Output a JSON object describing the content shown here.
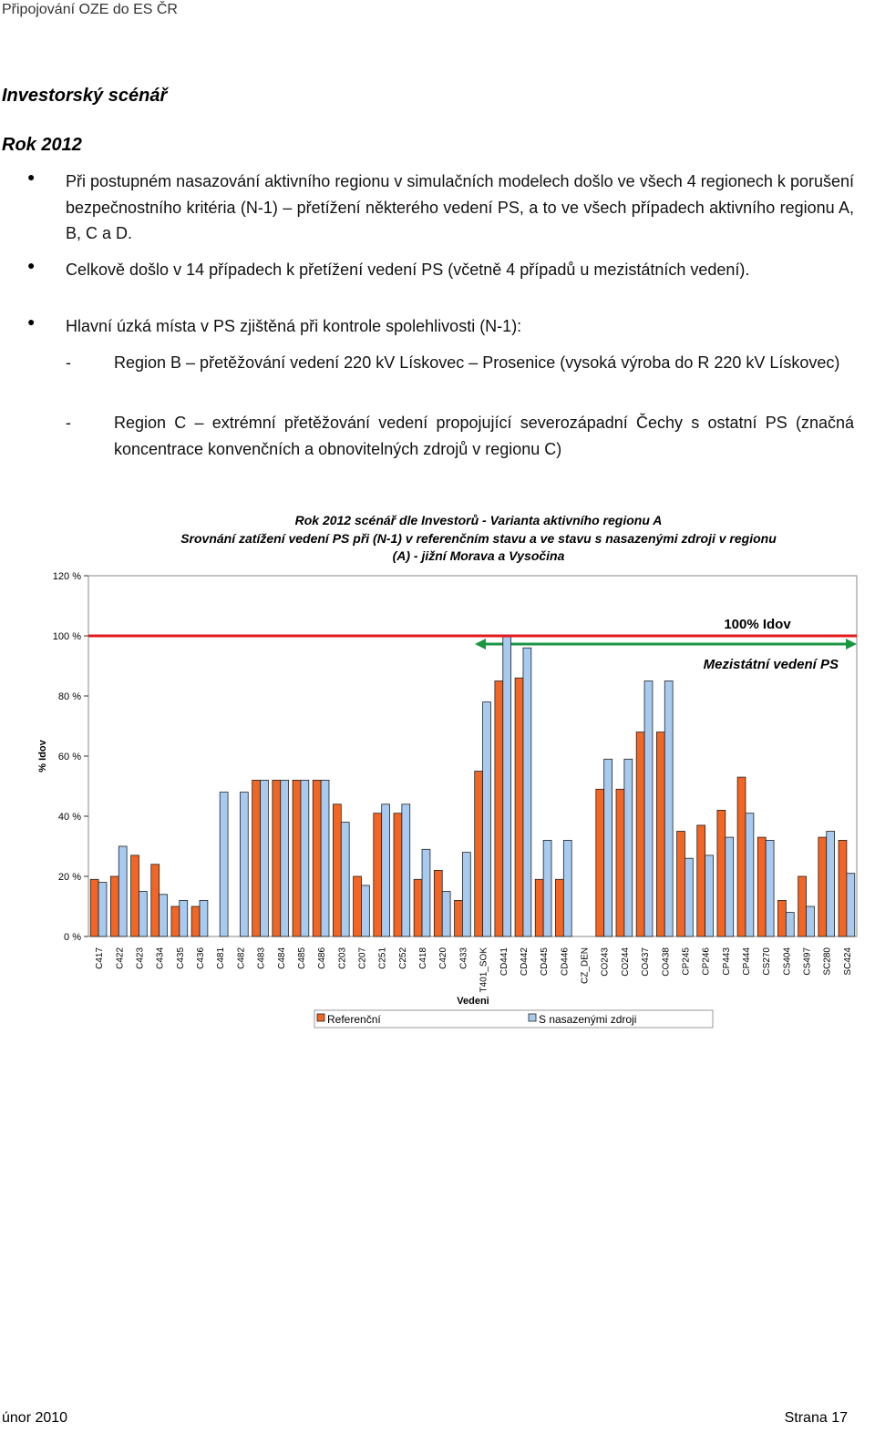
{
  "header": {
    "title": "Připojování OZE do ES ČR"
  },
  "section": {
    "title": "Investorský scénář",
    "year": "Rok 2012"
  },
  "bullets": [
    "Při postupném nasazování aktivního regionu v simulačních modelech došlo ve všech 4 regionech k porušení bezpečnostního kritéria (N-1) – přetížení některého vedení PS, a to ve všech případech aktivního regionu A, B, C a D.",
    "Celkově došlo v 14 případech k přetížení vedení PS (včetně 4 případů u mezistátních vedení).",
    "Hlavní úzká místa v PS zjištěná při kontrole spolehlivosti (N-1):"
  ],
  "sub_items": [
    {
      "dash": "-",
      "text": "Region B – přetěžování vedení 220 kV Lískovec – Prosenice (vysoká výroba do R 220 kV Lískovec)"
    },
    {
      "dash": "-",
      "text": "Region C – extrémní přetěžování vedení propojující severozápadní Čechy s ostatní PS (značná koncentrace konvenčních a obnovitelných zdrojů v regionu C)"
    }
  ],
  "chart_data": {
    "type": "bar",
    "title": [
      "Rok 2012 scénář dle Investorů - Varianta aktivního regionu A",
      "Srovnání zatížení vedení PS při (N-1) v referenčním stavu a ve stavu s nasazenými zdroji v regionu",
      "(A) - jižní Morava a Vysočina"
    ],
    "x_label": "Vedeni",
    "y_label": "% Idov",
    "categories": [
      "C417",
      "C422",
      "C423",
      "C434",
      "C435",
      "C436",
      "C481",
      "C482",
      "C483",
      "C484",
      "C485",
      "C486",
      "C203",
      "C207",
      "C251",
      "C252",
      "C418",
      "C420",
      "C433",
      "T401_SOK",
      "CD441",
      "CD442",
      "CD445",
      "CD446",
      "CZ_DEN",
      "CO243",
      "CO244",
      "CO437",
      "CO438",
      "CP245",
      "CP246",
      "CP443",
      "CP444",
      "CS270",
      "CS404",
      "CS497",
      "SC280",
      "SC424"
    ],
    "series": [
      {
        "name": "Referenční",
        "color": "#f26522",
        "values": [
          19,
          20,
          27,
          24,
          10,
          10,
          0,
          0,
          52,
          52,
          52,
          52,
          44,
          20,
          41,
          41,
          19,
          22,
          12,
          55,
          85,
          86,
          19,
          19,
          0,
          49,
          49,
          68,
          68,
          35,
          37,
          42,
          53,
          33,
          12,
          20,
          33,
          32
        ]
      },
      {
        "name": "S nasazenými zdroji",
        "color": "#a6caf0",
        "values": [
          18,
          30,
          15,
          14,
          12,
          12,
          48,
          48,
          52,
          52,
          52,
          52,
          38,
          17,
          44,
          44,
          29,
          15,
          28,
          78,
          100,
          96,
          32,
          32,
          0,
          59,
          59,
          85,
          85,
          26,
          27,
          33,
          41,
          32,
          8,
          10,
          35,
          21
        ]
      }
    ],
    "ylim": [
      0,
      120
    ],
    "yticks": [
      {
        "value": 0,
        "label": "0 %"
      },
      {
        "value": 20,
        "label": "20 %"
      },
      {
        "value": 40,
        "label": "40 %"
      },
      {
        "value": 60,
        "label": "60 %"
      },
      {
        "value": 80,
        "label": "80 %"
      },
      {
        "value": 100,
        "label": "100 %"
      },
      {
        "value": 120,
        "label": "120 %"
      }
    ],
    "threshold": {
      "value": 100,
      "label": "100% Idov",
      "color": "#e31a1c"
    },
    "annotation": "Mezistátní vedení PS"
  },
  "footer": {
    "left": "únor 2010",
    "right": "Strana 17"
  }
}
